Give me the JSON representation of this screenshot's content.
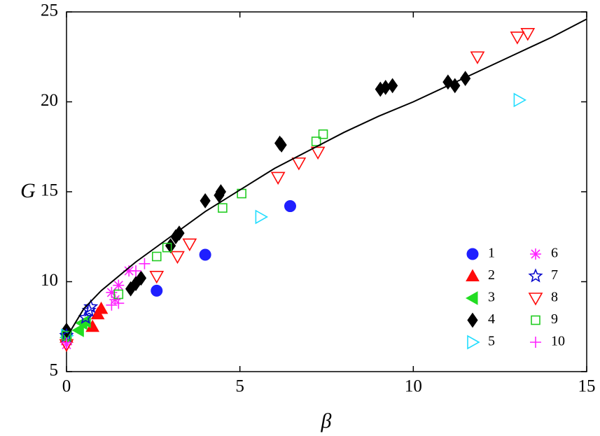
{
  "chart_data": {
    "type": "scatter",
    "x_label": "β",
    "y_label": "G",
    "xlim": [
      0,
      15
    ],
    "ylim": [
      5,
      25
    ],
    "xticks": [
      0,
      5,
      10,
      15
    ],
    "yticks": [
      5,
      10,
      15,
      20,
      25
    ],
    "legend": "lower right",
    "series": [
      {
        "name": "1",
        "color": "#1f1fff",
        "marker": "circle",
        "x": [
          0.0,
          2.6,
          4.0,
          6.45
        ],
        "values": [
          7.1,
          9.5,
          11.5,
          14.2
        ]
      },
      {
        "name": "2",
        "color": "#ff0a0a",
        "marker": "triangle-up",
        "x": [
          0.0,
          0.75,
          0.9,
          1.0
        ],
        "values": [
          6.9,
          7.5,
          8.2,
          8.5
        ]
      },
      {
        "name": "3",
        "color": "#22dd22",
        "marker": "triangle-left",
        "x": [
          0.0,
          0.35,
          0.45,
          0.55
        ],
        "values": [
          6.9,
          7.3,
          7.7,
          7.8
        ]
      },
      {
        "name": "4",
        "color": "#000000",
        "marker": "diamond",
        "x": [
          0.0,
          1.85,
          2.0,
          2.15,
          3.0,
          3.15,
          3.25,
          4.0,
          4.4,
          4.45,
          6.15,
          6.2,
          9.05,
          9.2,
          9.4,
          11.0,
          11.2,
          11.5
        ],
        "values": [
          7.3,
          9.6,
          9.9,
          10.2,
          12.0,
          12.5,
          12.7,
          14.5,
          14.8,
          15.0,
          17.7,
          17.6,
          20.7,
          20.8,
          20.9,
          21.1,
          20.9,
          21.3
        ]
      },
      {
        "name": "5",
        "color": "#22ddff",
        "marker": "triangle-right-open",
        "x": [
          0.0,
          5.6,
          13.05
        ],
        "values": [
          7.0,
          13.6,
          20.1
        ]
      },
      {
        "name": "6",
        "color": "#ff22ff",
        "marker": "asterisk",
        "x": [
          0.0,
          1.3,
          1.4,
          1.5,
          1.8
        ],
        "values": [
          6.5,
          9.4,
          9.0,
          9.8,
          10.6
        ]
      },
      {
        "name": "7",
        "color": "#0a0acc",
        "marker": "star-open",
        "x": [
          0.0,
          0.55,
          0.65,
          0.7
        ],
        "values": [
          7.0,
          8.0,
          8.4,
          8.6
        ]
      },
      {
        "name": "8",
        "color": "#ff0a0a",
        "marker": "triangle-down-open",
        "x": [
          0.0,
          2.6,
          3.2,
          3.55,
          6.1,
          6.7,
          7.25,
          11.85,
          13.0,
          13.3
        ],
        "values": [
          6.5,
          10.3,
          11.4,
          12.1,
          15.8,
          16.6,
          17.2,
          22.5,
          23.6,
          23.8
        ]
      },
      {
        "name": "9",
        "color": "#22cc22",
        "marker": "square-open",
        "x": [
          0.0,
          1.5,
          2.6,
          2.9,
          4.5,
          5.05,
          7.2,
          7.4
        ],
        "values": [
          7.0,
          9.3,
          11.4,
          11.9,
          14.1,
          14.9,
          17.8,
          18.2
        ]
      },
      {
        "name": "10",
        "color": "#ff22ff",
        "marker": "plus",
        "x": [
          0.0,
          1.3,
          1.5,
          2.0,
          2.25
        ],
        "values": [
          6.6,
          8.7,
          8.8,
          10.6,
          11.0
        ]
      },
      {
        "color": "#000000",
        "marker": "line",
        "x": [
          0,
          0.5,
          1,
          2,
          3,
          4,
          5,
          6,
          7,
          8,
          9,
          10,
          11,
          12,
          13,
          14,
          15
        ],
        "values": [
          6.9,
          8.5,
          9.5,
          11.1,
          12.5,
          13.9,
          15.1,
          16.3,
          17.3,
          18.3,
          19.2,
          20.0,
          20.9,
          21.8,
          22.7,
          23.6,
          24.6
        ]
      }
    ]
  }
}
